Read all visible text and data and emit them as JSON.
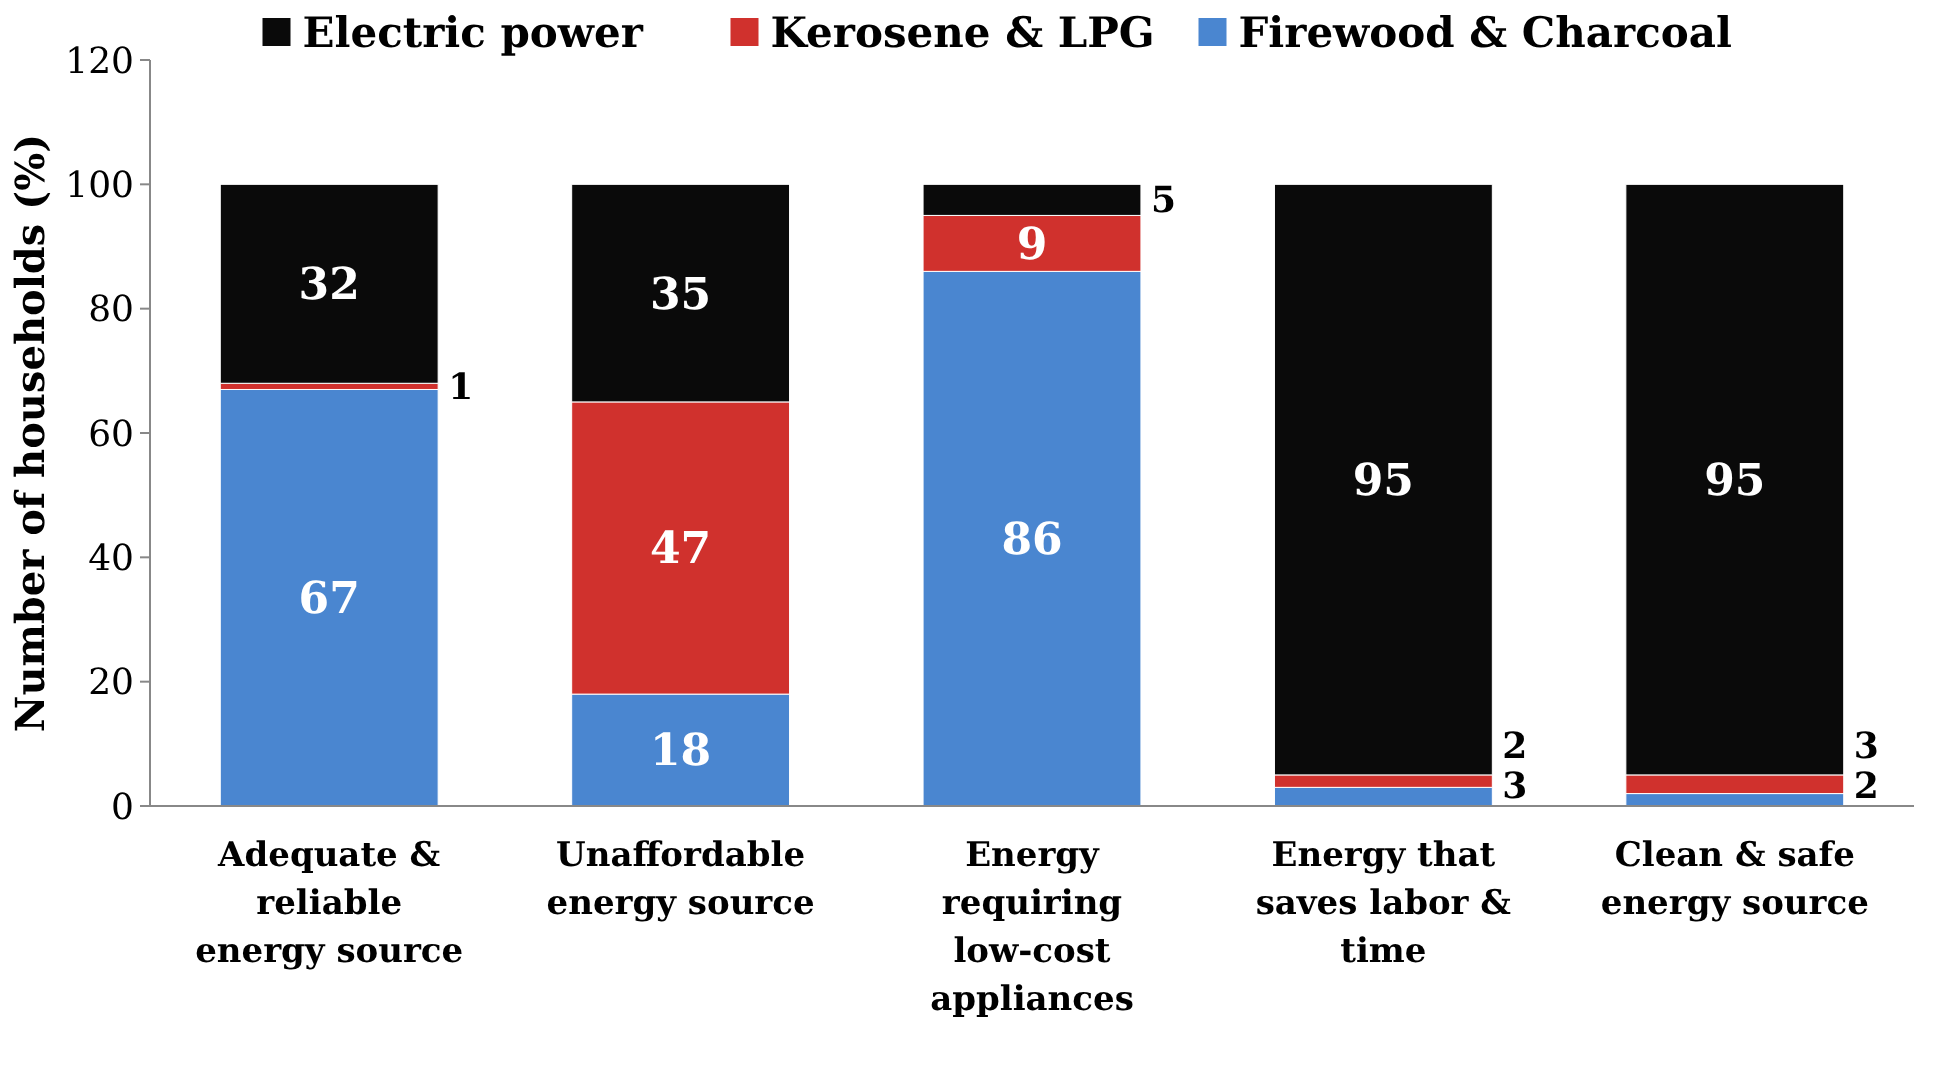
{
  "chart_data": {
    "type": "bar",
    "stacked": true,
    "ylabel": "Number of households (%)",
    "categories": [
      "Adequate & reliable energy source",
      "Unaffordable energy source",
      "Energy requiring low-cost appliances",
      "Energy that saves labor & time",
      "Clean & safe energy source"
    ],
    "series": [
      {
        "name": "Firewood & Charcoal",
        "color": "#4a86d0",
        "values": [
          67,
          18,
          86,
          3,
          2
        ]
      },
      {
        "name": "Kerosene & LPG",
        "color": "#d0312d",
        "values": [
          1,
          47,
          9,
          2,
          3
        ]
      },
      {
        "name": "Electric power",
        "color": "#0a0a0a",
        "values": [
          32,
          35,
          5,
          95,
          95
        ]
      }
    ],
    "ylim": [
      0,
      120
    ],
    "yticks": [
      0,
      20,
      40,
      60,
      80,
      100,
      120
    ],
    "grid": false,
    "legend": "top",
    "data_labels": true
  }
}
